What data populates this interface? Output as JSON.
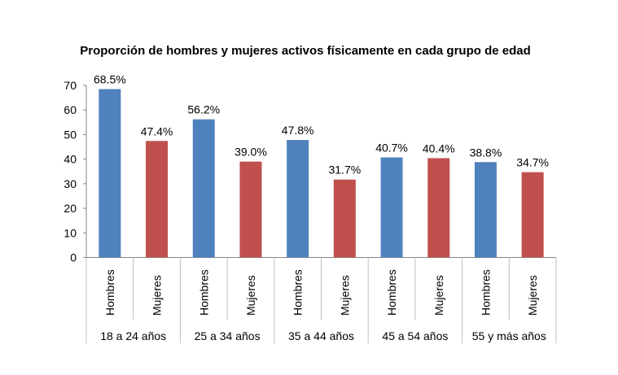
{
  "chart_data": {
    "type": "bar",
    "title": "Proporción de hombres y mujeres activos físicamente en cada grupo de edad",
    "xlabel": "",
    "ylabel": "",
    "ylim": [
      0,
      70
    ],
    "yticks": [
      0,
      10,
      20,
      30,
      40,
      50,
      60,
      70
    ],
    "grid": false,
    "legend": "none",
    "groups": [
      "18 a 24 años",
      "25 a 34 años",
      "35 a 44 años",
      "45 a 54 años",
      "55 y más años"
    ],
    "categories": [
      "Hombres",
      "Mujeres"
    ],
    "colors": {
      "Hombres": "#4F81BD",
      "Mujeres": "#C0504D"
    },
    "values": [
      [
        68.5,
        47.4
      ],
      [
        56.2,
        39.0
      ],
      [
        47.8,
        31.7
      ],
      [
        40.7,
        40.4
      ],
      [
        38.8,
        34.7
      ]
    ],
    "data_labels": [
      [
        "68.5%",
        "47.4%"
      ],
      [
        "56.2%",
        "39.0%"
      ],
      [
        "47.8%",
        "31.7%"
      ],
      [
        "40.7%",
        "40.4%"
      ],
      [
        "38.8%",
        "34.7%"
      ]
    ]
  }
}
